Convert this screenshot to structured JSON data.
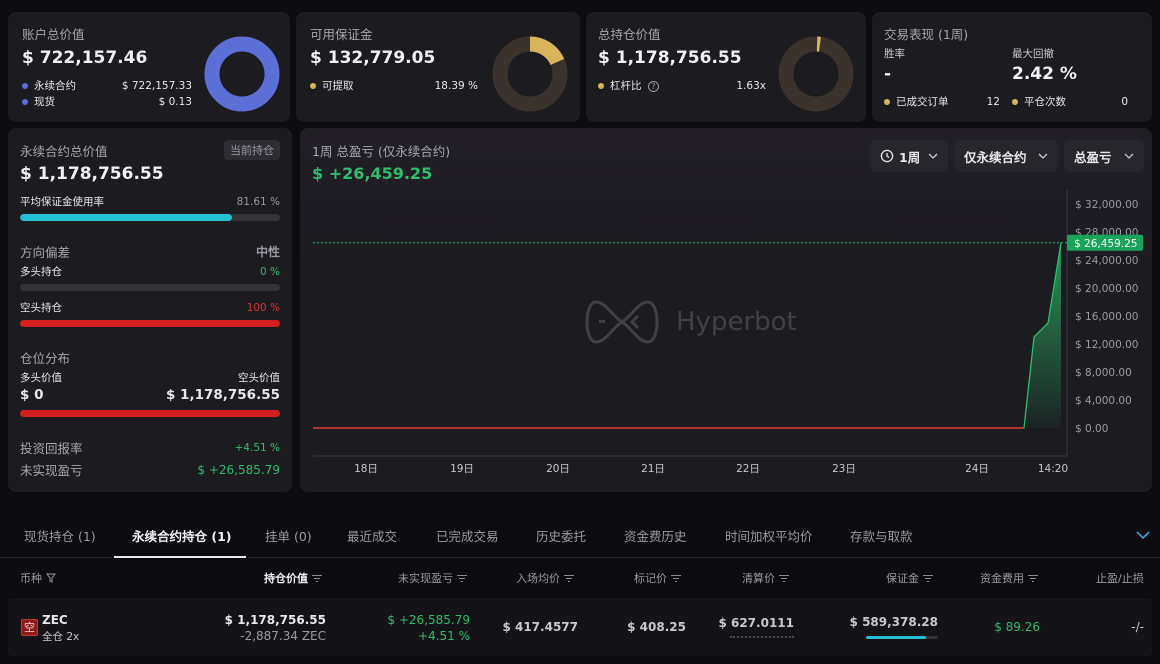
{
  "account": {
    "title": "账户总价值",
    "value": "$ 722,157.46",
    "items": [
      {
        "label": "永续合约",
        "value": "$ 722,157.33"
      },
      {
        "label": "现货",
        "value": "$ 0.13"
      }
    ]
  },
  "margin": {
    "title": "可用保证金",
    "value": "$ 132,779.05",
    "item_label": "可提取",
    "item_value": "18.39 %"
  },
  "holding": {
    "title": "总持仓价值",
    "value": "$ 1,178,756.55",
    "item_label": "杠杆比",
    "item_value": "1.63x"
  },
  "performance": {
    "title": "交易表现 (1周)",
    "winrate_label": "胜率",
    "winrate_value": "-",
    "drawdown_label": "最大回撤",
    "drawdown_value": "2.42 %",
    "orders_label": "已成交订单",
    "orders_value": "12",
    "close_label": "平仓次数",
    "close_value": "0"
  },
  "perp": {
    "title": "永续合约总价值",
    "badge": "当前持仓",
    "value": "$ 1,178,756.55",
    "util_label": "平均保证金使用率",
    "util_value": "81.61 %",
    "util_fraction": 0.8161,
    "bias_label": "方向偏差",
    "bias_value": "中性",
    "long_label": "多头持仓",
    "long_value": "0 %",
    "short_label": "空头持仓",
    "short_value": "100 %",
    "dist_label": "仓位分布",
    "long_val_label": "多头价值",
    "short_val_label": "空头价值",
    "long_val": "$ 0",
    "short_val": "$ 1,178,756.55",
    "roi_label": "投资回报率",
    "roi_value": "+4.51 %",
    "upnl_label": "未实现盈亏",
    "upnl_value": "$ +26,585.79"
  },
  "pnl_chart": {
    "title": "1周 总盈亏 (仅永续合约)",
    "value": "$ +26,459.25",
    "dd_period": "1周",
    "dd_scope": "仅永续合约",
    "dd_metric": "总盈亏",
    "watermark": "Hyperbot",
    "last_label": "$ 26,459.25"
  },
  "chart_data": {
    "type": "area",
    "x": [
      "18日",
      "19日",
      "20日",
      "21日",
      "22日",
      "23日",
      "24日",
      "14:20"
    ],
    "yticks": [
      "$ 32,000.00",
      "$ 28,000.00",
      "$ 24,000.00",
      "$ 20,000.00",
      "$ 16,000.00",
      "$ 12,000.00",
      "$ 8,000.00",
      "$ 4,000.00",
      "$ 0.00"
    ],
    "ylim": [
      0,
      34000
    ],
    "points": [
      {
        "x": "18日",
        "y": 0
      },
      {
        "x": "24日",
        "y": 0
      },
      {
        "x": "24日",
        "y": 0
      },
      {
        "x": "24日",
        "y": 13000
      },
      {
        "x": "24日",
        "y": 15000
      },
      {
        "x": "14:20",
        "y": 26459.25
      }
    ],
    "color": "#2ebd6b"
  },
  "tabs": [
    {
      "label": "现货持仓 (1)"
    },
    {
      "label": "永续合约持仓 (1)"
    },
    {
      "label": "挂单 (0)"
    },
    {
      "label": "最近成交"
    },
    {
      "label": "已完成交易"
    },
    {
      "label": "历史委托"
    },
    {
      "label": "资金费历史"
    },
    {
      "label": "时间加权平均价"
    },
    {
      "label": "存款与取款"
    }
  ],
  "table": {
    "headers": [
      "币种",
      "持仓价值",
      "未实现盈亏",
      "入场均价",
      "标记价",
      "清算价",
      "保证金",
      "资金费用",
      "止盈/止损"
    ],
    "row": {
      "side": "空",
      "coin": "ZEC",
      "mode": "全仓 2x",
      "value": "$ 1,178,756.55",
      "qty": "-2,887.34 ZEC",
      "upnl": "$ +26,585.79",
      "upnl_pct": "+4.51 %",
      "entry": "$ 417.4577",
      "mark": "$ 408.25",
      "liq": "$ 627.0111",
      "margin": "$ 589,378.28",
      "funding": "$ 89.26",
      "tpsl": "-/-"
    }
  },
  "colors": {
    "accent_blue": "#5b6fd6",
    "gold": "#d9b45a",
    "green": "#2ebd6b",
    "red": "#e0312e",
    "cyan": "#26c0d3"
  }
}
